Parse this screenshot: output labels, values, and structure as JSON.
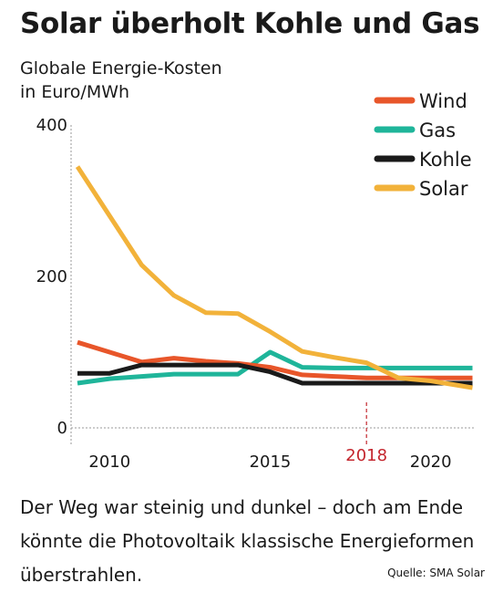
{
  "header": {
    "title": "Solar überholt Kohle und Gas",
    "unit_line1": "Globale Energie-Kosten",
    "unit_line2": "in Euro/MWh"
  },
  "footer": {
    "caption": "Der Weg war steinig und dunkel – doch am Ende könnte die Photovoltaik klassische Energieformen überstrahlen.",
    "source": "Quelle: SMA Solar"
  },
  "chart_data": {
    "type": "line",
    "title": "Solar überholt Kohle und Gas",
    "ylabel": "Globale Energie-Kosten in Euro/MWh",
    "xlabel": "",
    "xlim": [
      2008.8,
      2021.4
    ],
    "ylim": [
      0,
      400
    ],
    "x_ticks": [
      2010,
      2015,
      2020
    ],
    "y_ticks": [
      0,
      200,
      400
    ],
    "highlight": {
      "x": 2018,
      "label": "2018",
      "color": "#c4262e"
    },
    "legend_position": "top-right",
    "series": [
      {
        "name": "Wind",
        "color": "#e8562a",
        "x": [
          2009,
          2010,
          2011,
          2012,
          2013,
          2014,
          2015,
          2016,
          2017,
          2018,
          2019,
          2020,
          2021.3
        ],
        "values": [
          113,
          100,
          87,
          92,
          88,
          85,
          80,
          70,
          68,
          66,
          66,
          66,
          66
        ]
      },
      {
        "name": "Gas",
        "color": "#1fb59a",
        "x": [
          2009,
          2010,
          2011,
          2012,
          2013,
          2014,
          2015,
          2016,
          2017,
          2018,
          2019,
          2020,
          2021.3
        ],
        "values": [
          59,
          65,
          68,
          71,
          71,
          71,
          100,
          80,
          79,
          79,
          79,
          79,
          79
        ]
      },
      {
        "name": "Kohle",
        "color": "#1a1a1a",
        "x": [
          2009,
          2010,
          2011,
          2012,
          2013,
          2014,
          2015,
          2016,
          2017,
          2018,
          2019,
          2020,
          2021.3
        ],
        "values": [
          72,
          72,
          83,
          83,
          83,
          83,
          74,
          59,
          59,
          59,
          59,
          59,
          59
        ]
      },
      {
        "name": "Solar",
        "color": "#f2b23a",
        "x": [
          2009,
          2010,
          2011,
          2012,
          2013,
          2014,
          2015,
          2016,
          2017,
          2018,
          2019,
          2020,
          2021.3
        ],
        "values": [
          345,
          280,
          215,
          175,
          152,
          151,
          127,
          101,
          93,
          86,
          66,
          62,
          53
        ]
      }
    ]
  }
}
